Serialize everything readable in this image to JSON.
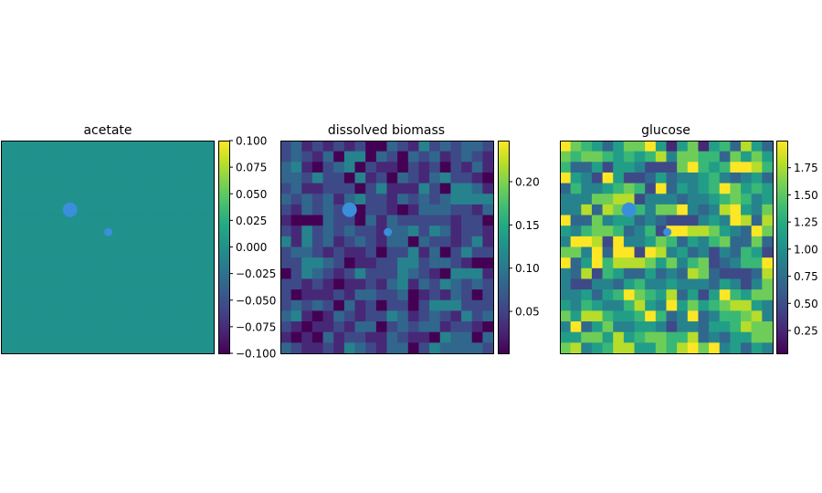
{
  "chart_data": [
    {
      "type": "heatmap",
      "title": "acetate",
      "grid_size": [
        20,
        20
      ],
      "uniform_value": 0.0,
      "colorbar": {
        "range": [
          -0.1,
          0.1
        ],
        "ticks": [
          "0.100",
          "0.075",
          "0.050",
          "0.025",
          "0.000",
          "−0.025",
          "−0.050",
          "−0.075",
          "−0.100"
        ],
        "tick_values": [
          0.1,
          0.075,
          0.05,
          0.025,
          0,
          -0.025,
          -0.05,
          -0.075,
          -0.1
        ]
      },
      "markers": [
        {
          "col": 6.5,
          "row": 6.5,
          "size": "large"
        },
        {
          "col": 10.1,
          "row": 8.6,
          "size": "small"
        }
      ]
    },
    {
      "type": "heatmap",
      "title": "dissolved biomass",
      "grid_size": [
        20,
        20
      ],
      "value_encoding": "digit d -> min + d/9*(max-min)",
      "colorbar": {
        "range": [
          0.0015,
          0.2475
        ],
        "ticks": [
          "0.20",
          "0.15",
          "0.10",
          "0.05"
        ],
        "tick_values": [
          0.2,
          0.15,
          0.1,
          0.05
        ]
      },
      "grid_digits": [
        "23121212003214232332",
        "23213044032032312321",
        "34102340211021202131",
        "33242204120321342210",
        "23112220241114204431",
        "32323134221323234444",
        "21323200221013332213",
        "10003220313222221220",
        "21423232213342431221",
        "41423123213303221241",
        "23321211202241302422",
        "22443201122442332100",
        "02432124222432104441",
        "22121011213413243232",
        "20111213322301213202",
        "23232031202202444222",
        "34101321224312321423",
        "21011213302323312210",
        "10103122113211043303",
        "32112143213302433332"
      ],
      "markers": [
        {
          "col": 6.5,
          "row": 6.5,
          "size": "large"
        },
        {
          "col": 10.1,
          "row": 8.6,
          "size": "small"
        }
      ]
    },
    {
      "type": "heatmap",
      "title": "glucose",
      "grid_size": [
        20,
        20
      ],
      "value_encoding": "digit d -> min + d/9*(max-min)",
      "colorbar": {
        "range": [
          0.04,
          2.0
        ],
        "ticks": [
          "1.75",
          "1.50",
          "1.25",
          "1.00",
          "0.75",
          "0.50",
          "0.25"
        ],
        "tick_values": [
          1.75,
          1.5,
          1.25,
          1.0,
          0.75,
          0.5,
          0.25
        ]
      },
      "grid_digits": [
        "97653577951571563853",
        "76776565684776637575",
        "63352554222796569986",
        "95429522353445643453",
        "36445676293545697565",
        "44477882444344567645",
        "44838776477943489547",
        "93374553432224549838",
        "54677634629988754397",
        "49982944576354673373",
        "77493992984534243652",
        "93596888757467234669",
        "43826533534387322238",
        "42244356445444354247",
        "44535697658352596577",
        "54654468549575678854",
        "75886556963493466784",
        "49357445542443556877",
        "55775856776683435577",
        "78456885576897945354"
      ],
      "markers": [
        {
          "col": 6.5,
          "row": 6.5,
          "size": "large"
        },
        {
          "col": 10.1,
          "row": 8.6,
          "size": "small"
        }
      ]
    }
  ],
  "colors": {
    "marker": "#3a8fdc",
    "colormap": [
      "#440154",
      "#482475",
      "#414487",
      "#355f8d",
      "#2a788e",
      "#21918c",
      "#22a884",
      "#44bf70",
      "#7ad151",
      "#bddf26",
      "#fde725"
    ]
  }
}
